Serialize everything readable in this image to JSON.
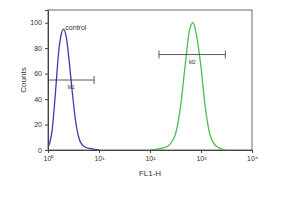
{
  "chart_data": {
    "type": "line",
    "xlabel": "FL1-H",
    "ylabel": "Counts",
    "log": "x",
    "xlim": [
      1,
      10000
    ],
    "xticks": [
      {
        "value": 1,
        "label": "10⁰"
      },
      {
        "value": 10,
        "label": "10¹"
      },
      {
        "value": 100,
        "label": "10²"
      },
      {
        "value": 1000,
        "label": "10³"
      },
      {
        "value": 10000,
        "label": "10⁴"
      }
    ],
    "ylim": [
      0,
      110
    ],
    "yticks": [
      0,
      20,
      40,
      60,
      80,
      100
    ],
    "series": [
      {
        "name": "control",
        "color": "#3b3bb0",
        "x": [
          1,
          1.2,
          1.4,
          1.6,
          1.8,
          2,
          2.3,
          2.6,
          3,
          3.5,
          4,
          5,
          7,
          10
        ],
        "values": [
          2,
          15,
          45,
          75,
          90,
          95,
          88,
          70,
          45,
          22,
          10,
          3,
          1,
          0
        ]
      },
      {
        "color": "#4cbf4c",
        "x": [
          100,
          200,
          300,
          400,
          500,
          600,
          700,
          800,
          1000,
          1200,
          1500,
          2000,
          3000
        ],
        "values": [
          0,
          2,
          10,
          35,
          70,
          95,
          100,
          92,
          65,
          35,
          12,
          3,
          0
        ]
      }
    ],
    "annotations": [
      {
        "text": "M1",
        "x": [
          1,
          8
        ],
        "y": 55
      },
      {
        "text": "M2",
        "x": [
          150,
          3000
        ],
        "y": 75
      }
    ]
  }
}
